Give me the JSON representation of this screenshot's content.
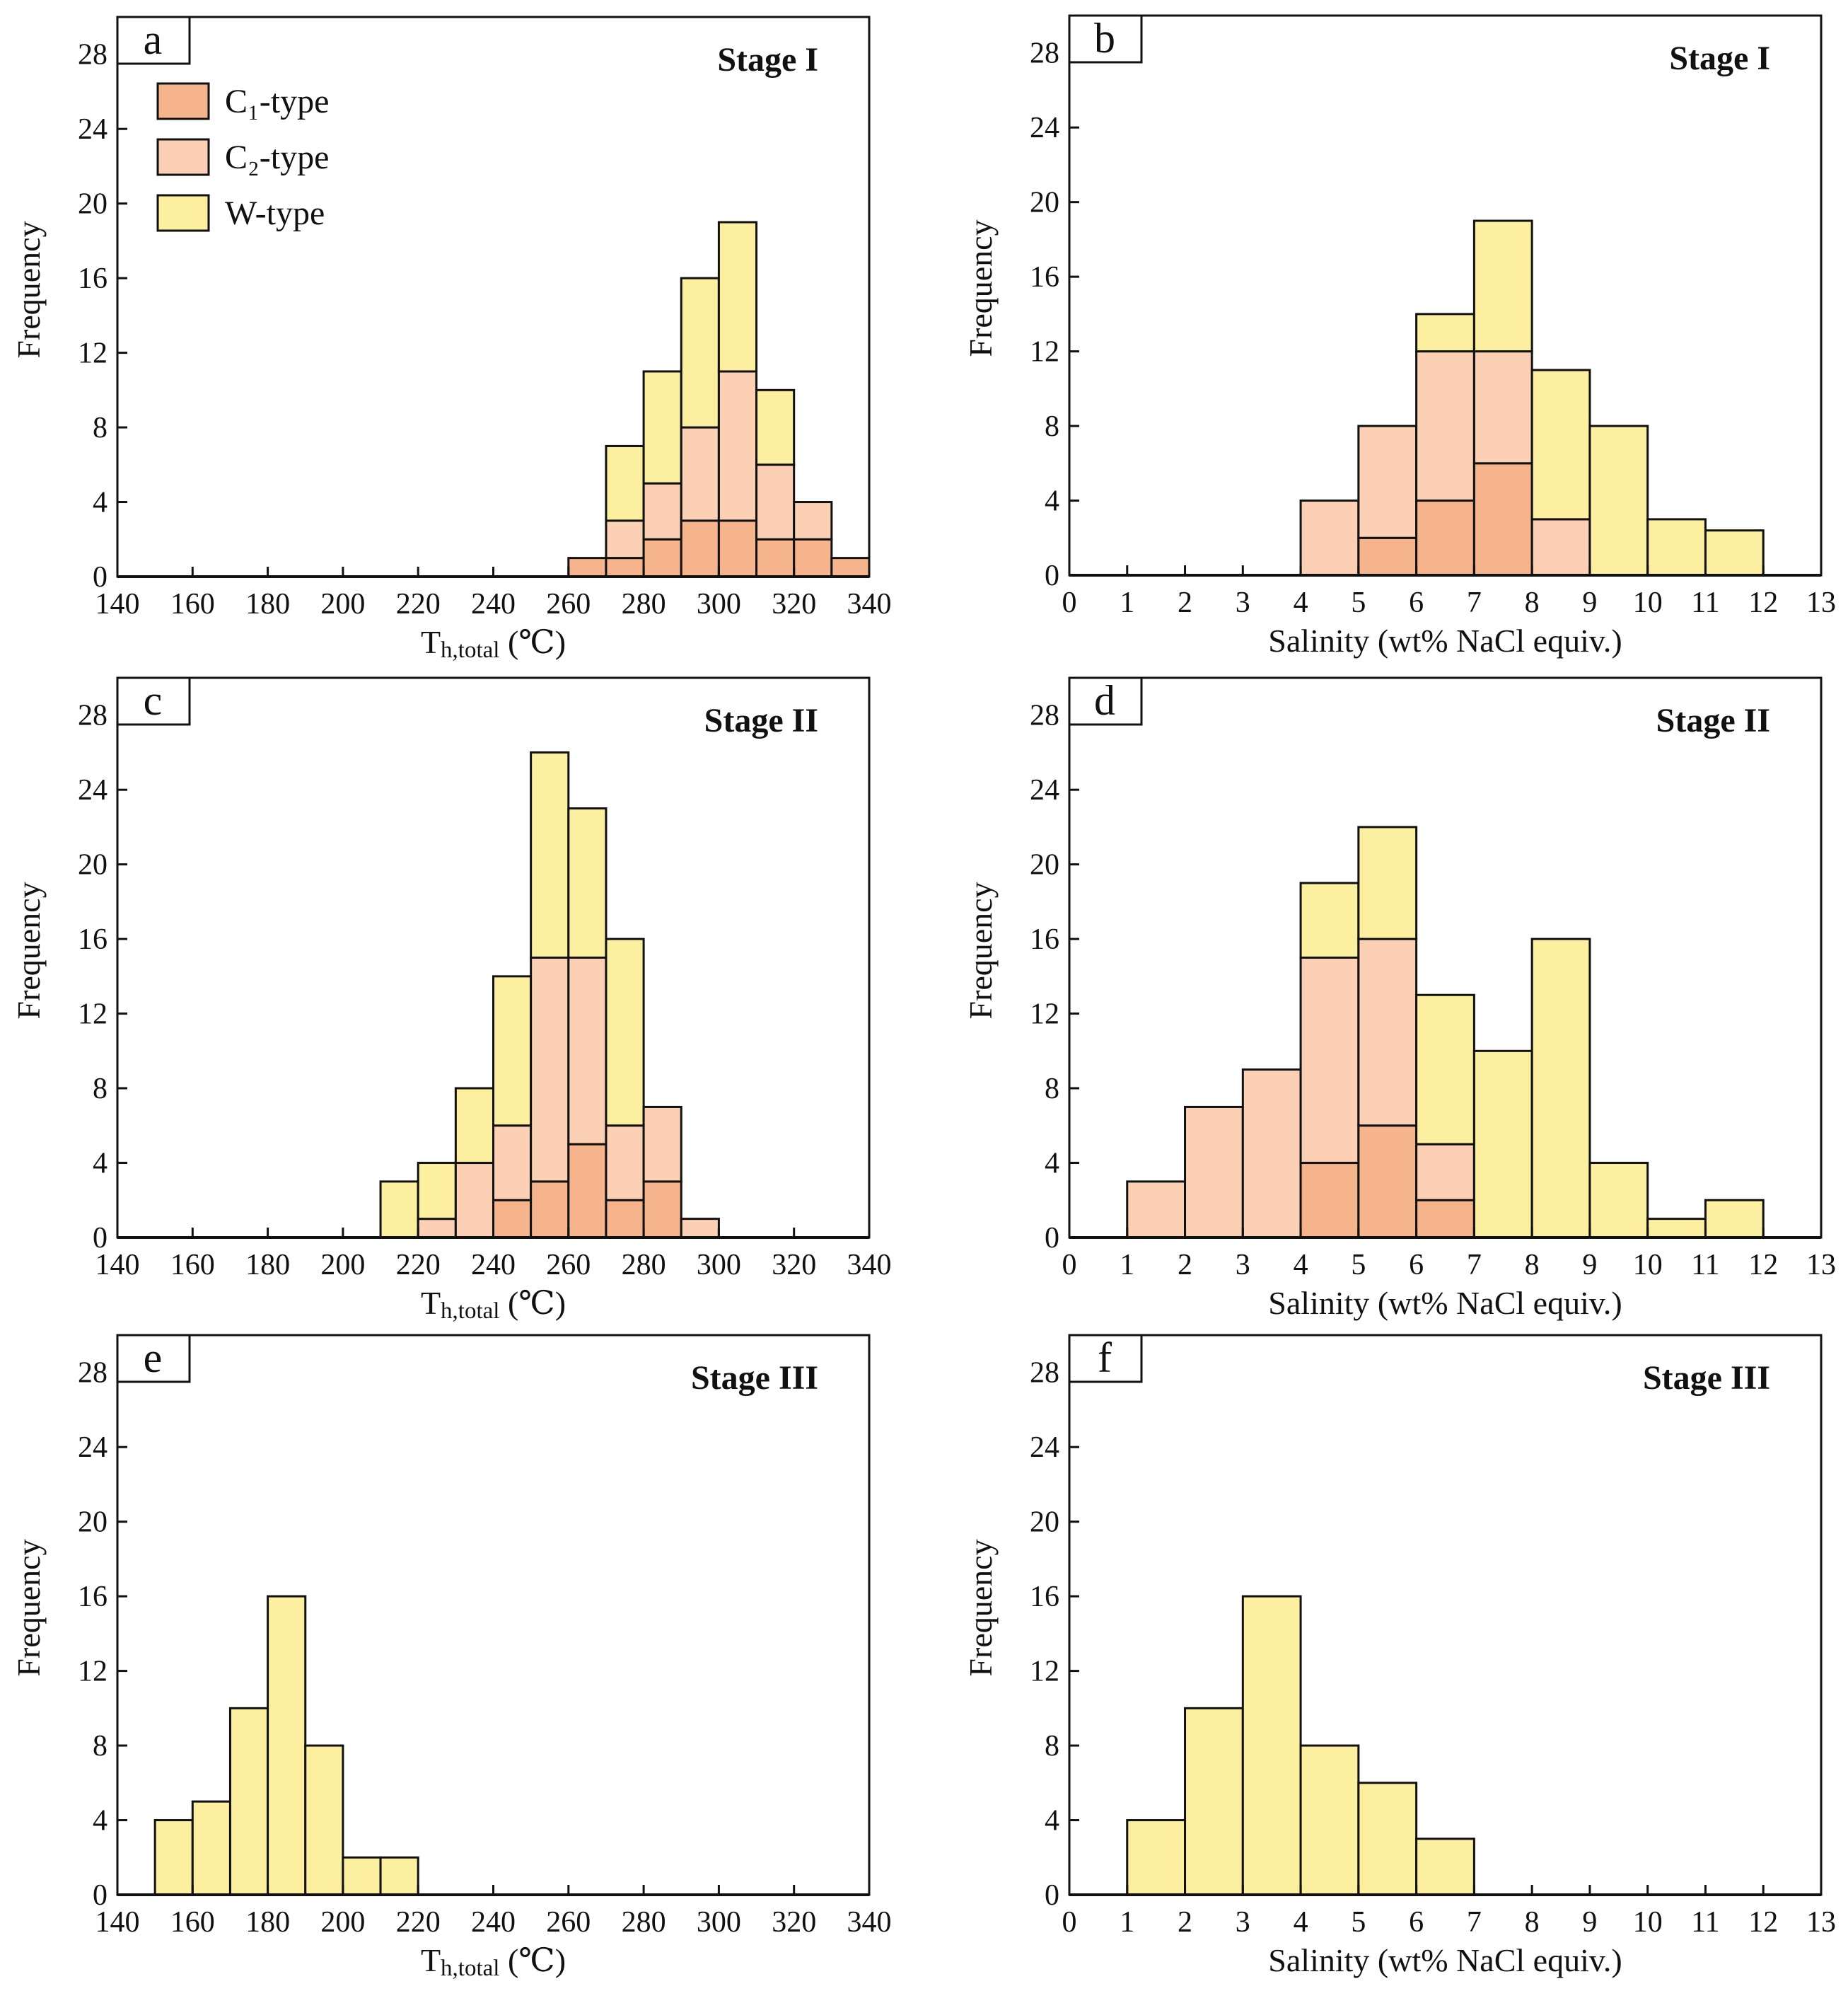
{
  "colors": {
    "c1": "#f5b48c",
    "c2": "#fcd0b4",
    "w": "#fcf0a0",
    "edge": "#111111"
  },
  "legend": [
    {
      "label": "C₁-type",
      "color_key": "c1"
    },
    {
      "label": "C₂-type",
      "color_key": "c2"
    },
    {
      "label": "W-type",
      "color_key": "w"
    }
  ],
  "chart_data": [
    {
      "panel": "a",
      "type": "bar",
      "stacked": true,
      "title": "Stage I",
      "xlabel_main": "T",
      "xlabel_sub": "h,total",
      "xlabel_tail": " (℃)",
      "ylabel": "Frequency",
      "xlim": [
        140,
        340
      ],
      "ylim": [
        0,
        30
      ],
      "bin_width": 10,
      "xticks": [
        140,
        160,
        180,
        200,
        220,
        240,
        260,
        280,
        300,
        320,
        340
      ],
      "yticks": [
        0,
        4,
        8,
        12,
        16,
        20,
        24,
        28
      ],
      "bins": [
        260,
        270,
        280,
        290,
        300,
        310,
        320,
        330
      ],
      "series": [
        {
          "name": "C₁-type",
          "color_key": "c1",
          "values": [
            1,
            1,
            2,
            3,
            3,
            2,
            2,
            1
          ]
        },
        {
          "name": "C₂-type",
          "color_key": "c2",
          "values": [
            0,
            2,
            3,
            5,
            8,
            4,
            2,
            0
          ]
        },
        {
          "name": "W-type",
          "color_key": "w",
          "values": [
            0,
            4,
            6,
            8,
            8,
            4,
            0,
            0
          ]
        }
      ]
    },
    {
      "panel": "b",
      "type": "bar",
      "stacked": true,
      "title": "Stage I",
      "xlabel_main": "Salinity (wt% NaCl equiv.)",
      "xlabel_sub": "",
      "xlabel_tail": "",
      "ylabel": "Frequency",
      "xlim": [
        0,
        13
      ],
      "ylim": [
        0,
        30
      ],
      "bin_width": 1,
      "xticks": [
        0,
        1,
        2,
        3,
        4,
        5,
        6,
        7,
        8,
        9,
        10,
        11,
        12,
        13
      ],
      "yticks": [
        0,
        4,
        8,
        12,
        16,
        20,
        24,
        28
      ],
      "bins": [
        4,
        5,
        6,
        7,
        8,
        9,
        10,
        11
      ],
      "series": [
        {
          "name": "C₁-type",
          "color_key": "c1",
          "values": [
            0,
            2,
            4,
            6,
            0,
            0,
            0,
            0
          ]
        },
        {
          "name": "C₂-type",
          "color_key": "c2",
          "values": [
            4,
            6,
            8,
            6,
            3,
            0,
            0,
            0
          ]
        },
        {
          "name": "W-type",
          "color_key": "w",
          "values": [
            0,
            0,
            2,
            7,
            8,
            8,
            3,
            2.4
          ]
        }
      ]
    },
    {
      "panel": "c",
      "type": "bar",
      "stacked": true,
      "title": "Stage II",
      "xlabel_main": "T",
      "xlabel_sub": "h,total",
      "xlabel_tail": " (℃)",
      "ylabel": "Frequency",
      "xlim": [
        140,
        340
      ],
      "ylim": [
        0,
        30
      ],
      "bin_width": 10,
      "xticks": [
        140,
        160,
        180,
        200,
        220,
        240,
        260,
        280,
        300,
        320,
        340
      ],
      "yticks": [
        0,
        4,
        8,
        12,
        16,
        20,
        24,
        28
      ],
      "bins": [
        210,
        220,
        230,
        240,
        250,
        260,
        270,
        280,
        290
      ],
      "series": [
        {
          "name": "C₁-type",
          "color_key": "c1",
          "values": [
            0,
            0,
            0,
            2,
            3,
            5,
            2,
            3,
            0
          ]
        },
        {
          "name": "C₂-type",
          "color_key": "c2",
          "values": [
            0,
            1,
            4,
            4,
            12,
            10,
            4,
            4,
            1
          ]
        },
        {
          "name": "W-type",
          "color_key": "w",
          "values": [
            3,
            3,
            4,
            8,
            11,
            8,
            10,
            0,
            0
          ]
        }
      ]
    },
    {
      "panel": "d",
      "type": "bar",
      "stacked": true,
      "title": "Stage II",
      "xlabel_main": "Salinity (wt% NaCl equiv.)",
      "xlabel_sub": "",
      "xlabel_tail": "",
      "ylabel": "Frequency",
      "xlim": [
        0,
        13
      ],
      "ylim": [
        0,
        30
      ],
      "bin_width": 1,
      "xticks": [
        0,
        1,
        2,
        3,
        4,
        5,
        6,
        7,
        8,
        9,
        10,
        11,
        12,
        13
      ],
      "yticks": [
        0,
        4,
        8,
        12,
        16,
        20,
        24,
        28
      ],
      "bins": [
        1,
        2,
        3,
        4,
        5,
        6,
        7,
        8,
        9,
        10,
        11
      ],
      "series": [
        {
          "name": "C₁-type",
          "color_key": "c1",
          "values": [
            0,
            0,
            0,
            4,
            6,
            2,
            0,
            0,
            0,
            0,
            0
          ]
        },
        {
          "name": "C₂-type",
          "color_key": "c2",
          "values": [
            3,
            7,
            9,
            11,
            10,
            3,
            0,
            0,
            0,
            0,
            0
          ]
        },
        {
          "name": "W-type",
          "color_key": "w",
          "values": [
            0,
            0,
            0,
            4,
            6,
            8,
            10,
            16,
            4,
            1,
            2
          ]
        }
      ]
    },
    {
      "panel": "e",
      "type": "bar",
      "stacked": true,
      "title": "Stage III",
      "xlabel_main": "T",
      "xlabel_sub": "h,total",
      "xlabel_tail": " (℃)",
      "ylabel": "Frequency",
      "xlim": [
        140,
        340
      ],
      "ylim": [
        0,
        30
      ],
      "bin_width": 10,
      "xticks": [
        140,
        160,
        180,
        200,
        220,
        240,
        260,
        280,
        300,
        320,
        340
      ],
      "yticks": [
        0,
        4,
        8,
        12,
        16,
        20,
        24,
        28
      ],
      "bins": [
        150,
        160,
        170,
        180,
        190,
        200,
        210
      ],
      "series": [
        {
          "name": "W-type",
          "color_key": "w",
          "values": [
            4,
            5,
            10,
            16,
            8,
            2,
            2
          ]
        }
      ]
    },
    {
      "panel": "f",
      "type": "bar",
      "stacked": true,
      "title": "Stage III",
      "xlabel_main": "Salinity (wt% NaCl equiv.)",
      "xlabel_sub": "",
      "xlabel_tail": "",
      "ylabel": "Frequency",
      "xlim": [
        0,
        13
      ],
      "ylim": [
        0,
        30
      ],
      "bin_width": 1,
      "xticks": [
        0,
        1,
        2,
        3,
        4,
        5,
        6,
        7,
        8,
        9,
        10,
        11,
        12,
        13
      ],
      "yticks": [
        0,
        4,
        8,
        12,
        16,
        20,
        24,
        28
      ],
      "bins": [
        1,
        2,
        3,
        4,
        5,
        6
      ],
      "series": [
        {
          "name": "W-type",
          "color_key": "w",
          "values": [
            4,
            10,
            16,
            8,
            6,
            3
          ]
        }
      ]
    }
  ]
}
